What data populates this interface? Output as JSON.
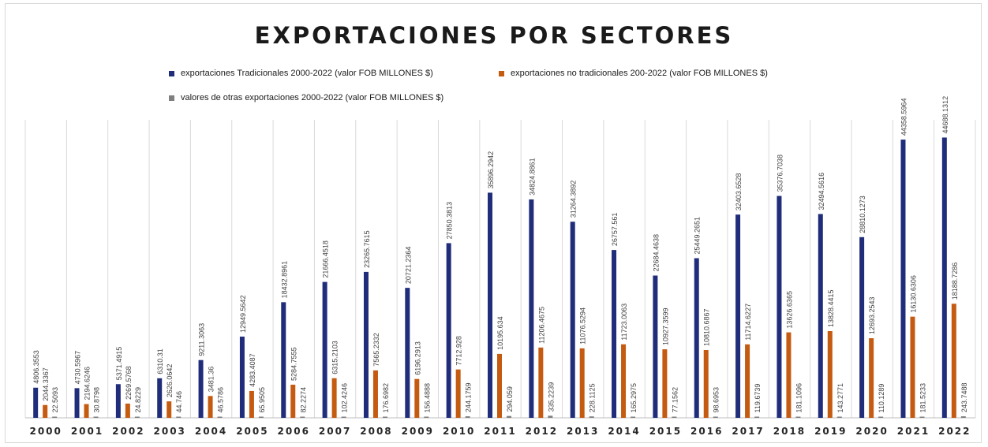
{
  "title": "EXPORTACIONES POR SECTORES",
  "legend": [
    {
      "label": "exportaciones Tradicionales 2000-2022  (valor FOB MILLONES $)",
      "color": "#1f2d7a"
    },
    {
      "label": "exportaciones no tradicionales 200-2022  (valor FOB MILLONES $)",
      "color": "#c55a11"
    },
    {
      "label": "valores de otras exportaciones 2000-2022  (valor FOB MILLONES $)",
      "color": "#7f7f7f"
    }
  ],
  "chart_data": {
    "type": "bar",
    "title": "EXPORTACIONES POR SECTORES",
    "categories": [
      "2000",
      "2001",
      "2002",
      "2003",
      "2004",
      "2005",
      "2006",
      "2007",
      "2008",
      "2009",
      "2010",
      "2011",
      "2012",
      "2013",
      "2014",
      "2015",
      "2016",
      "2017",
      "2018",
      "2019",
      "2020",
      "2021",
      "2022"
    ],
    "series": [
      {
        "name": "exportaciones Tradicionales 2000-2022  (valor FOB MILLONES $)",
        "color": "#1f2d7a",
        "values": [
          4806.3553,
          4730.5967,
          5371.4915,
          6310.31,
          9211.3063,
          12949.5642,
          18432.8961,
          21666.4518,
          23265.7615,
          20721.2364,
          27850.3813,
          35896.2942,
          34824.8861,
          31264.3892,
          26757.561,
          22684.4638,
          25449.2651,
          32403.6528,
          35376.7038,
          32494.5616,
          28810.1273,
          44358.5964,
          44688.1312
        ],
        "labels": [
          "4806.3553",
          "4730.5967",
          "5371.4915",
          "6310.31",
          "9211.3063",
          "12949.5642",
          "18432.8961",
          "21666.4518",
          "23265.7615",
          "20721.2364",
          "27850.3813",
          "35896.2942",
          "34824.8861",
          "31264.3892",
          "26757.561",
          "22684.4638",
          "25449.2651",
          "32403.6528",
          "35376.7038",
          "32494.5616",
          "28810.1273",
          "44358.5964",
          "44688.1312"
        ]
      },
      {
        "name": "exportaciones no tradicionales 200-2022  (valor FOB MILLONES $)",
        "color": "#c55a11",
        "values": [
          2044.3367,
          2194.6246,
          2269.5768,
          2626.0642,
          3481.36,
          4283.4087,
          5284.7555,
          6315.2103,
          7565.2332,
          6196.2913,
          7712.928,
          10195.634,
          11206.4675,
          11076.5294,
          11723.0063,
          10927.3599,
          10810.6867,
          11714.6227,
          13626.6365,
          13828.4415,
          12693.2543,
          16130.6306,
          18188.7286
        ],
        "labels": [
          "2044.3367",
          "2194.6246",
          "2269.5768",
          "2626.0642",
          "3481.36",
          "4283.4087",
          "5284.7555",
          "6315.2103",
          "7565.2332",
          "6196.2913",
          "7712.928",
          "10195.634",
          "11206.4675",
          "11076.5294",
          "11723.0063",
          "10927.3599",
          "10810.6867",
          "11714.6227",
          "13626.6365",
          "13828.4415",
          "12693.2543",
          "16130.6306",
          "18188.7286"
        ]
      },
      {
        "name": "valores de otras exportaciones 2000-2022  (valor FOB MILLONES $)",
        "color": "#7f7f7f",
        "values": [
          22.5093,
          30.8798,
          24.8229,
          44.746,
          46.5786,
          65.9505,
          82.2274,
          102.4246,
          176.6982,
          156.4888,
          244.1759,
          294.059,
          335.2239,
          228.1125,
          165.2975,
          77.1562,
          98.6953,
          119.6739,
          181.1096,
          143.2771,
          110.1289,
          181.5233,
          243.7488
        ],
        "labels": [
          "22.5093",
          "30.8798",
          "24.8229",
          "44.746",
          "46.5786",
          "65.9505",
          "82.2274",
          "102.4246",
          "176.6982",
          "156.4888",
          "244.1759",
          "294.059",
          "335.2239",
          "228.1125",
          "165.2975",
          "77.1562",
          "98.6953",
          "119.6739",
          "181.1096",
          "143.2771",
          "110.1289",
          "181.5233",
          "243.7488"
        ]
      }
    ],
    "grid": false,
    "legend_position": "top",
    "category_separators": true
  }
}
